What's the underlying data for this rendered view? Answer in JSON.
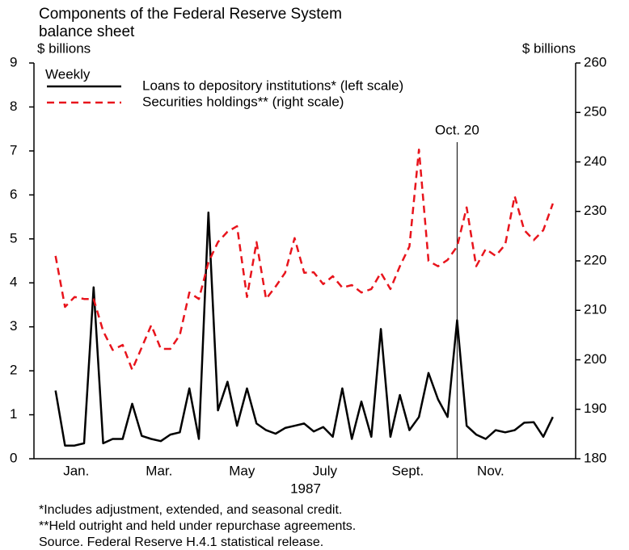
{
  "chart_data": {
    "type": "line",
    "title": [
      "Components of the Federal Reserve System",
      "balance sheet"
    ],
    "ylabel": "$ billions",
    "y2label": "$ billions",
    "xlabel": "1987",
    "legend_title": "Weekly",
    "notes": [
      "*Includes adjustment, extended, and seasonal credit.",
      "**Held outright and held under repurchase agreements.",
      "Source. Federal Reserve H.4.1 statistical release."
    ],
    "annotation": {
      "text": "Oct. 20",
      "x": 9.69
    },
    "x": [
      0,
      0.23,
      0.46,
      0.69,
      0.92,
      1.15,
      1.38,
      1.62,
      1.85,
      2.08,
      2.31,
      2.54,
      2.77,
      3,
      3.23,
      3.46,
      3.69,
      3.92,
      4.15,
      4.38,
      4.62,
      4.85,
      5.08,
      5.31,
      5.54,
      5.77,
      6,
      6.23,
      6.46,
      6.69,
      6.92,
      7.15,
      7.38,
      7.62,
      7.85,
      8.08,
      8.31,
      8.54,
      8.77,
      9,
      9.23,
      9.46,
      9.69,
      9.92,
      10.15,
      10.38,
      10.62,
      10.85,
      11.08,
      11.31,
      11.54,
      11.77,
      12
    ],
    "xlim": [
      -0.52,
      12.55
    ],
    "xticks": [
      {
        "value": 0.5,
        "label": "Jan."
      },
      {
        "value": 2.5,
        "label": "Mar."
      },
      {
        "value": 4.5,
        "label": "May"
      },
      {
        "value": 6.5,
        "label": "July"
      },
      {
        "value": 8.5,
        "label": "Sept."
      },
      {
        "value": 10.5,
        "label": "Nov."
      }
    ],
    "ylim": [
      0,
      9
    ],
    "yticks": [
      0,
      1,
      2,
      3,
      4,
      5,
      6,
      7,
      8,
      9
    ],
    "y2lim": [
      180,
      260
    ],
    "y2ticks": [
      180,
      190,
      200,
      210,
      220,
      230,
      240,
      250,
      260
    ],
    "series": [
      {
        "name": "Loans to depository institutions* (left scale)",
        "color": "#000000",
        "dash": "solid",
        "values": [
          1.55,
          0.3,
          0.3,
          0.35,
          3.9,
          0.35,
          0.45,
          0.45,
          1.25,
          0.52,
          0.45,
          0.4,
          0.55,
          0.6,
          1.6,
          0.45,
          5.6,
          1.1,
          1.75,
          0.75,
          1.6,
          0.8,
          0.65,
          0.57,
          0.7,
          0.75,
          0.8,
          0.62,
          0.72,
          0.5,
          1.6,
          0.45,
          1.3,
          0.5,
          2.95,
          0.5,
          1.45,
          0.65,
          0.95,
          1.95,
          1.35,
          0.95,
          3.15,
          0.75,
          0.55,
          0.45,
          0.65,
          0.6,
          0.65,
          0.82,
          0.83,
          0.5,
          0.95
        ]
      },
      {
        "name": "Securities holdings** (right scale)",
        "color": "#e8141c",
        "dash": "dashed",
        "axis": "y2",
        "values": [
          221,
          210.7,
          212.7,
          212.3,
          212.3,
          205.8,
          202,
          203,
          198,
          202.5,
          207,
          202.2,
          202.2,
          205,
          213.6,
          212.3,
          219.7,
          223.8,
          225.9,
          227,
          212.7,
          223.8,
          212.3,
          214.8,
          217.6,
          224.6,
          217.6,
          217.7,
          215.3,
          216.9,
          214.6,
          215.1,
          213.6,
          214.3,
          217.6,
          214.3,
          218.9,
          222.9,
          242.5,
          220,
          218.9,
          220.2,
          222.9,
          230.8,
          218.9,
          222.4,
          221,
          223.3,
          233.1,
          226.2,
          224.2,
          226.2,
          231.6
        ]
      }
    ]
  }
}
